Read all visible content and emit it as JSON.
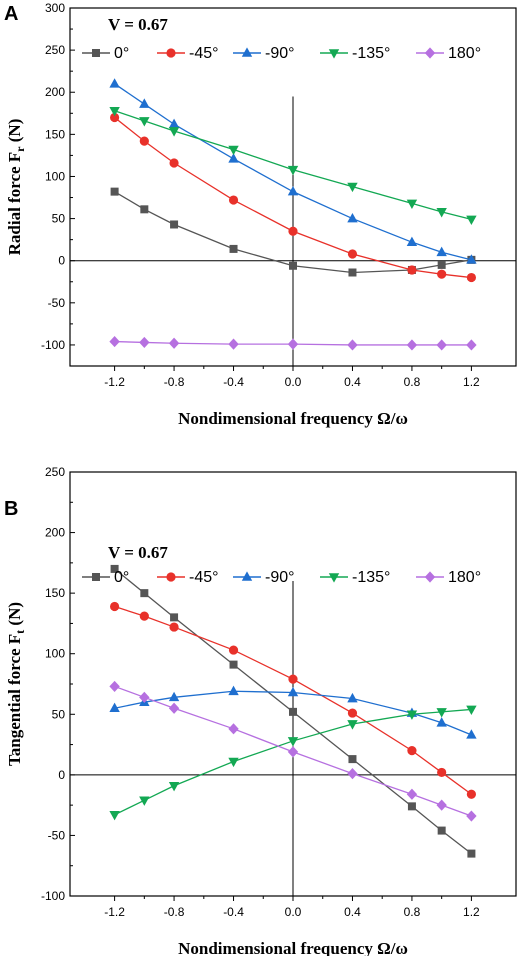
{
  "chart_data": [
    {
      "panel": "A",
      "type": "line",
      "annotation": "V = 0.67",
      "xlabel": "Nondimensional frequency  Ω/ω",
      "ylabel_main": "Radial force F",
      "ylabel_sub": "r",
      "ylabel_unit": " (N)",
      "xlim": [
        -1.5,
        1.5
      ],
      "ylim": [
        -125,
        300
      ],
      "xticks": [
        -1.2,
        -0.8,
        -0.4,
        0.0,
        0.4,
        0.8,
        1.2
      ],
      "xtick_labels": [
        "-1.2",
        "-0.8",
        "-0.4",
        "0.0",
        "0.4",
        "0.8",
        "1.2"
      ],
      "yticks": [
        -100,
        -50,
        0,
        50,
        100,
        150,
        200,
        250,
        300
      ],
      "ytick_labels": [
        "-100",
        "-50",
        "0",
        "50",
        "100",
        "150",
        "200",
        "250",
        "300"
      ],
      "x": [
        -1.2,
        -1.0,
        -0.8,
        -0.4,
        0.0,
        0.4,
        0.8,
        1.0,
        1.2
      ],
      "series": [
        {
          "name": "0°",
          "color": "#555555",
          "marker": "square",
          "values": [
            82,
            61,
            43,
            14,
            -6,
            -14,
            -11,
            -5,
            1
          ]
        },
        {
          "name": "-45°",
          "color": "#e8312a",
          "marker": "circle",
          "values": [
            170,
            142,
            116,
            72,
            35,
            8,
            -11,
            -16,
            -20
          ]
        },
        {
          "name": "-90°",
          "color": "#1f6fcf",
          "marker": "triangle-up",
          "values": [
            210,
            186,
            162,
            121,
            82,
            50,
            22,
            10,
            1
          ]
        },
        {
          "name": "-135°",
          "color": "#13a853",
          "marker": "triangle-down",
          "values": [
            178,
            166,
            154,
            132,
            108,
            88,
            68,
            58,
            49
          ]
        },
        {
          "name": "180°",
          "color": "#b670e0",
          "marker": "diamond",
          "values": [
            -96,
            -97,
            -98,
            -99,
            -99,
            -100,
            -100,
            -100,
            -100
          ]
        }
      ],
      "legend_position": "top"
    },
    {
      "panel": "B",
      "type": "line",
      "annotation": "V = 0.67",
      "xlabel": "Nondimensional frequency  Ω/ω",
      "ylabel_main": "Tangential force F",
      "ylabel_sub": "t",
      "ylabel_unit": " (N)",
      "xlim": [
        -1.5,
        1.5
      ],
      "ylim": [
        -100,
        250
      ],
      "xticks": [
        -1.2,
        -0.8,
        -0.4,
        0.0,
        0.4,
        0.8,
        1.2
      ],
      "xtick_labels": [
        "-1.2",
        "-0.8",
        "-0.4",
        "0.0",
        "0.4",
        "0.8",
        "1.2"
      ],
      "yticks": [
        -100,
        -50,
        0,
        50,
        100,
        150,
        200,
        250
      ],
      "ytick_labels": [
        "-100",
        "-50",
        "0",
        "50",
        "100",
        "150",
        "200",
        "250"
      ],
      "x": [
        -1.2,
        -1.0,
        -0.8,
        -0.4,
        0.0,
        0.4,
        0.8,
        1.0,
        1.2
      ],
      "series": [
        {
          "name": "0°",
          "color": "#555555",
          "marker": "square",
          "values": [
            170,
            150,
            130,
            91,
            52,
            13,
            -26,
            -46,
            -65
          ]
        },
        {
          "name": "-45°",
          "color": "#e8312a",
          "marker": "circle",
          "values": [
            139,
            131,
            122,
            103,
            79,
            51,
            20,
            2,
            -16
          ]
        },
        {
          "name": "-90°",
          "color": "#1f6fcf",
          "marker": "triangle-up",
          "values": [
            55,
            60,
            64,
            69,
            68,
            63,
            51,
            43,
            33
          ]
        },
        {
          "name": "-135°",
          "color": "#13a853",
          "marker": "triangle-down",
          "values": [
            -33,
            -21,
            -9,
            11,
            28,
            42,
            50,
            52,
            54
          ]
        },
        {
          "name": "180°",
          "color": "#b670e0",
          "marker": "diamond",
          "values": [
            73,
            64,
            55,
            38,
            19,
            1,
            -16,
            -25,
            -34
          ]
        }
      ],
      "legend_position": "top"
    }
  ]
}
